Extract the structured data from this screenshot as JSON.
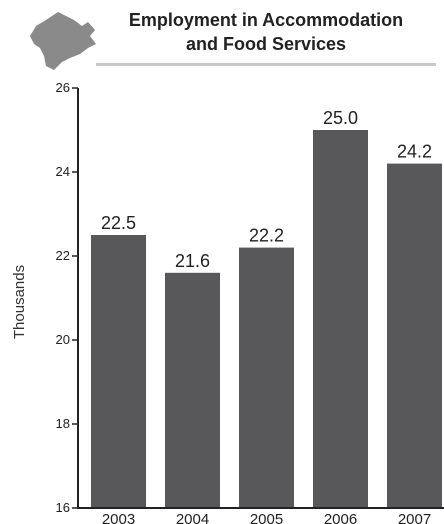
{
  "chart_data": {
    "type": "bar",
    "title_lines": [
      "Employment in Accommodation",
      "and Food Services"
    ],
    "ylabel": "Thousands",
    "categories": [
      "2003",
      "2004",
      "2005",
      "2006",
      "2007"
    ],
    "values": [
      22.5,
      21.6,
      22.2,
      25.0,
      24.2
    ],
    "data_labels": [
      "22.5",
      "21.6",
      "22.2",
      "25.0",
      "24.2"
    ],
    "ylim": [
      16,
      26
    ],
    "yticks": [
      "16",
      "18",
      "20",
      "22",
      "24",
      "26"
    ],
    "grid": false,
    "legend": "none"
  },
  "colors": {
    "bar": "#58585a",
    "axis": "#222222",
    "title_rule": "#c8c8c8",
    "map_icon": "#8a8a8a"
  },
  "icons": {
    "logo": "province-map-icon"
  }
}
